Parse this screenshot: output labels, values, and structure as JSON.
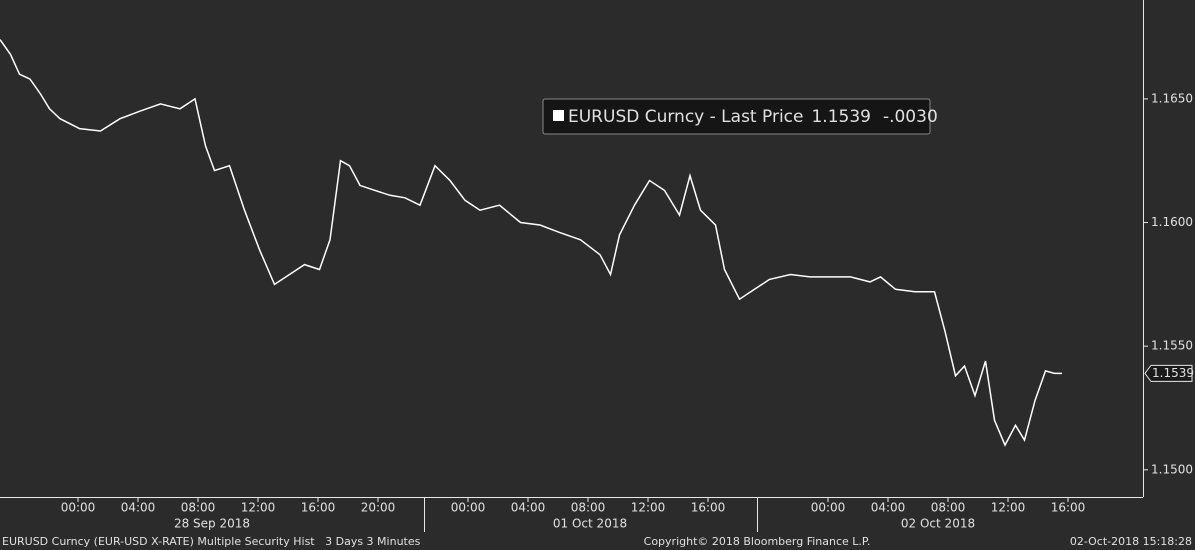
{
  "chart_data": {
    "type": "line",
    "x": [
      -5.2,
      -4.5,
      -3.9,
      -3.2,
      -2.5,
      -1.9,
      -1.2,
      0.1,
      1.5,
      2.8,
      4.1,
      5.5,
      6.8,
      7.8,
      8.5,
      9.1,
      10.1,
      11.1,
      12.1,
      13.1,
      14.1,
      15.1,
      16.1,
      16.8,
      17.5,
      18.1,
      18.8,
      19.8,
      20.8,
      21.8,
      22.8,
      23.8,
      24.8,
      25.8,
      26.8,
      28.1,
      29.5,
      30.8,
      32.1,
      33.5,
      34.8,
      35.5,
      36.1,
      37.1,
      38.1,
      39.1,
      40.1,
      40.8,
      41.5,
      42.5,
      43.1,
      44.1,
      45.1,
      46.1,
      47.5,
      48.8,
      50.1,
      51.5,
      52.8,
      53.5,
      54.5,
      55.8,
      57.1,
      57.8,
      58.5,
      59.1,
      59.8,
      60.5,
      61.1,
      61.8,
      62.5,
      63.1,
      63.8,
      64.5,
      65.1,
      65.6
    ],
    "series": [
      {
        "name": "EURUSD Curncy - Last Price",
        "color": "#ffffff",
        "values": [
          1.1674,
          1.1668,
          1.166,
          1.1658,
          1.1652,
          1.1646,
          1.1642,
          1.1638,
          1.1637,
          1.1642,
          1.1645,
          1.1648,
          1.1646,
          1.165,
          1.1631,
          1.1621,
          1.1623,
          1.1605,
          1.1589,
          1.1575,
          1.1579,
          1.1583,
          1.1581,
          1.1593,
          1.1625,
          1.1623,
          1.1615,
          1.1613,
          1.1611,
          1.161,
          1.1607,
          1.1623,
          1.1617,
          1.1609,
          1.1605,
          1.1607,
          1.16,
          1.1599,
          1.1596,
          1.1593,
          1.1587,
          1.1579,
          1.1595,
          1.1607,
          1.1617,
          1.1613,
          1.1603,
          1.1619,
          1.1605,
          1.1599,
          1.1581,
          1.1569,
          1.1573,
          1.1577,
          1.1579,
          1.1578,
          1.1578,
          1.1578,
          1.1576,
          1.1578,
          1.1573,
          1.1572,
          1.1572,
          1.1556,
          1.1538,
          1.1542,
          1.153,
          1.1544,
          1.152,
          1.151,
          1.1518,
          1.1512,
          1.1528,
          1.154,
          1.1539,
          1.1539
        ]
      }
    ],
    "xlim": [
      -5.2,
      71
    ],
    "ylim": [
      1.1489,
      1.169
    ],
    "yticks": [
      {
        "value": 1.15,
        "label": "1.1500"
      },
      {
        "value": 1.155,
        "label": "1.1550"
      },
      {
        "value": 1.16,
        "label": "1.1600"
      },
      {
        "value": 1.165,
        "label": "1.1650"
      }
    ],
    "xticks": [
      {
        "value": 0,
        "label": "00:00"
      },
      {
        "value": 4,
        "label": "04:00"
      },
      {
        "value": 8,
        "label": "08:00"
      },
      {
        "value": 12,
        "label": "12:00"
      },
      {
        "value": 16,
        "label": "16:00"
      },
      {
        "value": 20,
        "label": "20:00"
      },
      {
        "value": 26,
        "label": "00:00"
      },
      {
        "value": 30,
        "label": "04:00"
      },
      {
        "value": 34,
        "label": "08:00"
      },
      {
        "value": 38,
        "label": "12:00"
      },
      {
        "value": 42,
        "label": "16:00"
      },
      {
        "value": 50,
        "label": "00:00"
      },
      {
        "value": 54,
        "label": "04:00"
      },
      {
        "value": 58,
        "label": "08:00"
      },
      {
        "value": 62,
        "label": "12:00"
      },
      {
        "value": 66,
        "label": "16:00"
      }
    ],
    "x_groups": [
      "28 Sep 2018",
      "01 Oct 2018",
      "02 Oct 2018"
    ],
    "last_price": 1.1539,
    "last_change": {
      "value": -0.003,
      "label": "-.0030"
    },
    "footer": {
      "description": "EURUSD Curncy (EUR-USD X-RATE) Multiple Security Hist   3 Days 3 Minutes",
      "copyright": "Copyright© 2018 Bloomberg Finance L.P.",
      "timestamp": "02-Oct-2018 15:18:28"
    }
  }
}
